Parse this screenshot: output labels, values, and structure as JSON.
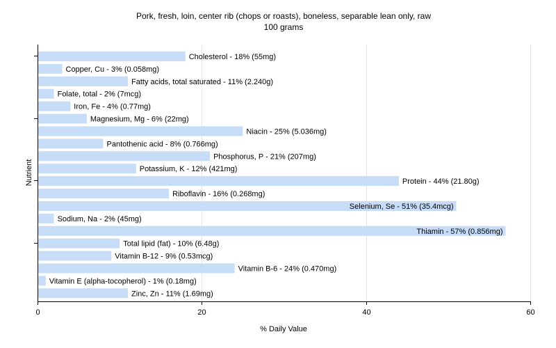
{
  "chart_data": {
    "type": "bar",
    "orientation": "horizontal",
    "title": "Pork, fresh, loin, center rib (chops or roasts), boneless, separable lean only, raw",
    "subtitle": "100 grams",
    "xlabel": "% Daily Value",
    "ylabel": "Nutrient",
    "xlim": [
      0,
      60
    ],
    "xticks": [
      "0",
      "20",
      "40",
      "60"
    ],
    "grid": true,
    "bar_color": "#c6dcf7",
    "categories": [
      "Cholesterol",
      "Copper, Cu",
      "Fatty acids, total saturated",
      "Folate, total",
      "Iron, Fe",
      "Magnesium, Mg",
      "Niacin",
      "Pantothenic acid",
      "Phosphorus, P",
      "Potassium, K",
      "Protein",
      "Riboflavin",
      "Selenium, Se",
      "Sodium, Na",
      "Thiamin",
      "Total lipid (fat)",
      "Vitamin B-12",
      "Vitamin B-6",
      "Vitamin E (alpha-tocopherol)",
      "Zinc, Zn"
    ],
    "values": [
      18,
      3,
      11,
      2,
      4,
      6,
      25,
      8,
      21,
      12,
      44,
      16,
      51,
      2,
      57,
      10,
      9,
      24,
      1,
      11
    ],
    "labels": [
      "Cholesterol - 18% (55mg)",
      "Copper, Cu - 3% (0.058mg)",
      "Fatty acids, total saturated - 11% (2.240g)",
      "Folate, total - 2% (7mcg)",
      "Iron, Fe - 4% (0.77mg)",
      "Magnesium, Mg - 6% (22mg)",
      "Niacin - 25% (5.036mg)",
      "Pantothenic acid - 8% (0.766mg)",
      "Phosphorus, P - 21% (207mg)",
      "Potassium, K - 12% (421mg)",
      "Protein - 44% (21.80g)",
      "Riboflavin - 16% (0.268mg)",
      "Selenium, Se - 51% (35.4mcg)",
      "Sodium, Na - 2% (45mg)",
      "Thiamin - 57% (0.856mg)",
      "Total lipid (fat) - 10% (6.48g)",
      "Vitamin B-12 - 9% (0.53mcg)",
      "Vitamin B-6 - 24% (0.470mg)",
      "Vitamin E (alpha-tocopherol) - 1% (0.18mg)",
      "Zinc, Zn - 11% (1.69mg)"
    ]
  }
}
